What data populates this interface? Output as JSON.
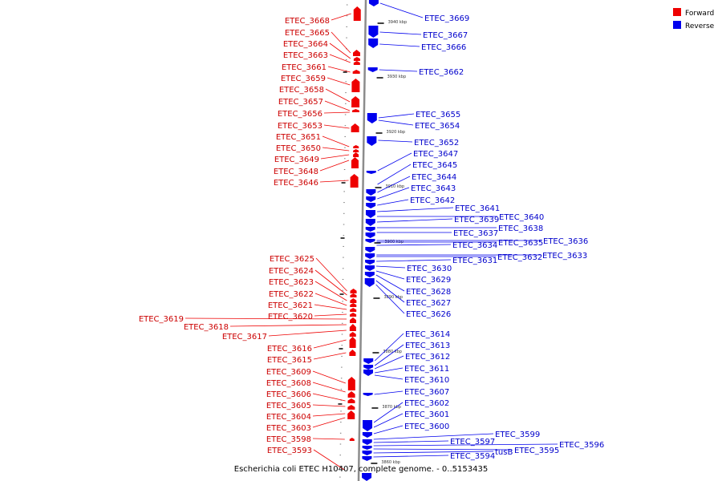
{
  "caption": "Escherichia coli ETEC H10407, complete genome. - 0..5153435",
  "legend": [
    {
      "label": "Forward",
      "color": "#ee0000"
    },
    {
      "label": "Reverse",
      "color": "#0000ee"
    }
  ],
  "colors": {
    "forward": "#ee0000",
    "reverse": "#0000ee",
    "backbone": "#8c8c8c"
  },
  "ticks": [
    "3940 kbp",
    "3930 kbp",
    "3920 kbp",
    "3910 kbp",
    "3900 kbp",
    "3890 kbp",
    "3880 kbp",
    "3870 kbp",
    "3860 kbp"
  ],
  "forward_labels": [
    "ETEC_3668",
    "ETEC_3665",
    "ETEC_3664",
    "ETEC_3663",
    "ETEC_3661",
    "ETEC_3659",
    "ETEC_3658",
    "ETEC_3657",
    "ETEC_3656",
    "ETEC_3653",
    "ETEC_3651",
    "ETEC_3650",
    "ETEC_3649",
    "ETEC_3648",
    "ETEC_3646",
    "ETEC_3625",
    "ETEC_3624",
    "ETEC_3623",
    "ETEC_3622",
    "ETEC_3621",
    "ETEC_3620",
    "ETEC_3619",
    "ETEC_3618",
    "ETEC_3617",
    "ETEC_3616",
    "ETEC_3615",
    "ETEC_3609",
    "ETEC_3608",
    "ETEC_3606",
    "ETEC_3605",
    "ETEC_3604",
    "ETEC_3603",
    "ETEC_3598",
    "ETEC_3593"
  ],
  "reverse_labels": [
    "ETEC_3669",
    "ETEC_3667",
    "ETEC_3666",
    "ETEC_3662",
    "ETEC_3655",
    "ETEC_3654",
    "ETEC_3652",
    "ETEC_3647",
    "ETEC_3645",
    "ETEC_3644",
    "ETEC_3643",
    "ETEC_3642",
    "ETEC_3641",
    "ETEC_3640",
    "ETEC_3639",
    "ETEC_3638",
    "ETEC_3637",
    "ETEC_3636",
    "ETEC_3635",
    "ETEC_3634",
    "ETEC_3633",
    "ETEC_3632",
    "ETEC_3631",
    "ETEC_3630",
    "ETEC_3629",
    "ETEC_3628",
    "ETEC_3627",
    "ETEC_3626",
    "ETEC_3614",
    "ETEC_3613",
    "ETEC_3612",
    "ETEC_3611",
    "ETEC_3610",
    "ETEC_3607",
    "ETEC_3602",
    "ETEC_3601",
    "ETEC_3600",
    "ETEC_3599",
    "ETEC_3597",
    "ETEC_3596",
    "ETEC_3595",
    "tusB",
    "ETEC_3594"
  ]
}
